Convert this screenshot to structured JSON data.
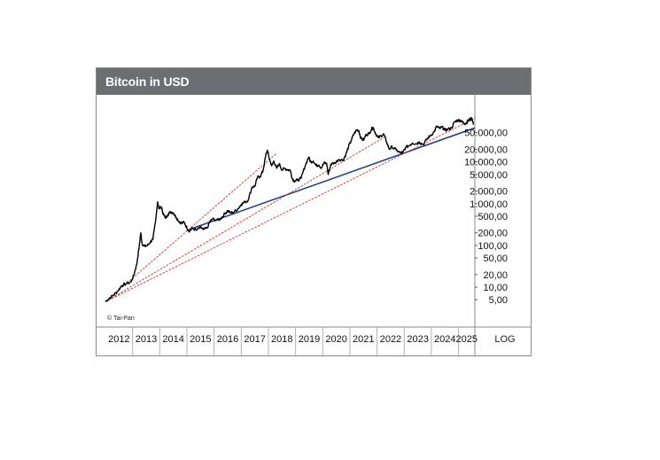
{
  "chart_data": {
    "type": "line",
    "title": "Bitcoin in USD",
    "copyright": "© Tai-Pan",
    "scale": "LOG",
    "y_axis": {
      "type": "log",
      "range": [
        2,
        300000
      ],
      "ticks": [
        {
          "value": 50000,
          "label": "50.000,00"
        },
        {
          "value": 20000,
          "label": "20.000,00"
        },
        {
          "value": 10000,
          "label": "10.000,00"
        },
        {
          "value": 5000,
          "label": "5.000,00"
        },
        {
          "value": 2000,
          "label": "2.000,00"
        },
        {
          "value": 1000,
          "label": "1.000,00"
        },
        {
          "value": 500,
          "label": "500,00"
        },
        {
          "value": 200,
          "label": "200,00"
        },
        {
          "value": 100,
          "label": "100,00"
        },
        {
          "value": 50,
          "label": "50,00"
        },
        {
          "value": 20,
          "label": "20,00"
        },
        {
          "value": 10,
          "label": "10,00"
        },
        {
          "value": 5,
          "label": "5,00"
        }
      ]
    },
    "x_axis": {
      "range": [
        2012.0,
        2025.6
      ],
      "years": [
        "2012",
        "2013",
        "2014",
        "2015",
        "2016",
        "2017",
        "2018",
        "2019",
        "2020",
        "2021",
        "2022",
        "2023",
        "2024",
        "2025"
      ]
    },
    "series": [
      {
        "name": "Bitcoin",
        "color": "#000000",
        "points": [
          [
            2012.0,
            4.5
          ],
          [
            2012.15,
            5.5
          ],
          [
            2012.3,
            6.5
          ],
          [
            2012.45,
            8
          ],
          [
            2012.6,
            11
          ],
          [
            2012.75,
            12
          ],
          [
            2012.95,
            13.5
          ],
          [
            2013.05,
            20
          ],
          [
            2013.15,
            35
          ],
          [
            2013.25,
            100
          ],
          [
            2013.3,
            200
          ],
          [
            2013.35,
            110
          ],
          [
            2013.45,
            95
          ],
          [
            2013.55,
            100
          ],
          [
            2013.65,
            120
          ],
          [
            2013.75,
            140
          ],
          [
            2013.82,
            300
          ],
          [
            2013.88,
            600
          ],
          [
            2013.92,
            1100
          ],
          [
            2013.98,
            750
          ],
          [
            2014.05,
            850
          ],
          [
            2014.12,
            600
          ],
          [
            2014.2,
            450
          ],
          [
            2014.3,
            550
          ],
          [
            2014.4,
            640
          ],
          [
            2014.5,
            600
          ],
          [
            2014.6,
            480
          ],
          [
            2014.7,
            380
          ],
          [
            2014.8,
            340
          ],
          [
            2014.9,
            360
          ],
          [
            2015.0,
            260
          ],
          [
            2015.1,
            220
          ],
          [
            2015.2,
            260
          ],
          [
            2015.35,
            230
          ],
          [
            2015.5,
            270
          ],
          [
            2015.6,
            240
          ],
          [
            2015.75,
            260
          ],
          [
            2015.85,
            380
          ],
          [
            2015.95,
            430
          ],
          [
            2016.1,
            400
          ],
          [
            2016.25,
            440
          ],
          [
            2016.4,
            580
          ],
          [
            2016.5,
            680
          ],
          [
            2016.6,
            600
          ],
          [
            2016.75,
            640
          ],
          [
            2016.9,
            780
          ],
          [
            2017.0,
            970
          ],
          [
            2017.15,
            1100
          ],
          [
            2017.25,
            1200
          ],
          [
            2017.4,
            2500
          ],
          [
            2017.5,
            2600
          ],
          [
            2017.6,
            4300
          ],
          [
            2017.7,
            4500
          ],
          [
            2017.8,
            6000
          ],
          [
            2017.9,
            14000
          ],
          [
            2017.96,
            19000
          ],
          [
            2018.05,
            11000
          ],
          [
            2018.12,
            8000
          ],
          [
            2018.2,
            10500
          ],
          [
            2018.3,
            7000
          ],
          [
            2018.4,
            9000
          ],
          [
            2018.5,
            6400
          ],
          [
            2018.6,
            7000
          ],
          [
            2018.7,
            6500
          ],
          [
            2018.8,
            6400
          ],
          [
            2018.88,
            4000
          ],
          [
            2018.95,
            3500
          ],
          [
            2019.05,
            3600
          ],
          [
            2019.2,
            4000
          ],
          [
            2019.35,
            8000
          ],
          [
            2019.48,
            13000
          ],
          [
            2019.55,
            10000
          ],
          [
            2019.65,
            10500
          ],
          [
            2019.75,
            8200
          ],
          [
            2019.85,
            8500
          ],
          [
            2019.95,
            7200
          ],
          [
            2020.05,
            9500
          ],
          [
            2020.15,
            9000
          ],
          [
            2020.2,
            5000
          ],
          [
            2020.3,
            8800
          ],
          [
            2020.45,
            9500
          ],
          [
            2020.6,
            11500
          ],
          [
            2020.75,
            11000
          ],
          [
            2020.85,
            15000
          ],
          [
            2020.95,
            23000
          ],
          [
            2021.05,
            33000
          ],
          [
            2021.15,
            47000
          ],
          [
            2021.25,
            58000
          ],
          [
            2021.33,
            56000
          ],
          [
            2021.4,
            37000
          ],
          [
            2021.5,
            33000
          ],
          [
            2021.6,
            45000
          ],
          [
            2021.7,
            47000
          ],
          [
            2021.8,
            62000
          ],
          [
            2021.86,
            66000
          ],
          [
            2021.95,
            47000
          ],
          [
            2022.05,
            38000
          ],
          [
            2022.15,
            42000
          ],
          [
            2022.25,
            46000
          ],
          [
            2022.35,
            30000
          ],
          [
            2022.45,
            20000
          ],
          [
            2022.55,
            23000
          ],
          [
            2022.7,
            19500
          ],
          [
            2022.85,
            16500
          ],
          [
            2022.95,
            16800
          ],
          [
            2023.05,
            22000
          ],
          [
            2023.2,
            25000
          ],
          [
            2023.3,
            28500
          ],
          [
            2023.45,
            27000
          ],
          [
            2023.55,
            30000
          ],
          [
            2023.7,
            26000
          ],
          [
            2023.85,
            36000
          ],
          [
            2023.95,
            42000
          ],
          [
            2024.1,
            52000
          ],
          [
            2024.2,
            71000
          ],
          [
            2024.3,
            63000
          ],
          [
            2024.4,
            68000
          ],
          [
            2024.5,
            57000
          ],
          [
            2024.6,
            60000
          ],
          [
            2024.75,
            65000
          ],
          [
            2024.85,
            90000
          ],
          [
            2024.95,
            98000
          ],
          [
            2025.05,
            100000
          ],
          [
            2025.12,
            92000
          ],
          [
            2025.2,
            83000
          ],
          [
            2025.28,
            84000
          ],
          [
            2025.34,
            95000
          ],
          [
            2025.42,
            105000
          ],
          [
            2025.5,
            108000
          ],
          [
            2025.55,
            78000
          ]
        ]
      }
    ],
    "trendlines": [
      {
        "name": "trend-blue",
        "color": "#1f3f8f",
        "from": [
          2015.0,
          230
        ],
        "to": [
          2025.6,
          65000
        ]
      },
      {
        "name": "trend-red-1",
        "color": "#d62a20",
        "from": [
          2012.0,
          4.5
        ],
        "to": [
          2018.3,
          16000
        ]
      },
      {
        "name": "trend-red-2",
        "color": "#d62a20",
        "from": [
          2012.0,
          4.5
        ],
        "to": [
          2022.3,
          40000
        ]
      },
      {
        "name": "trend-red-3",
        "color": "#d62a20",
        "from": [
          2012.0,
          4.5
        ],
        "to": [
          2025.6,
          110000
        ]
      }
    ]
  }
}
